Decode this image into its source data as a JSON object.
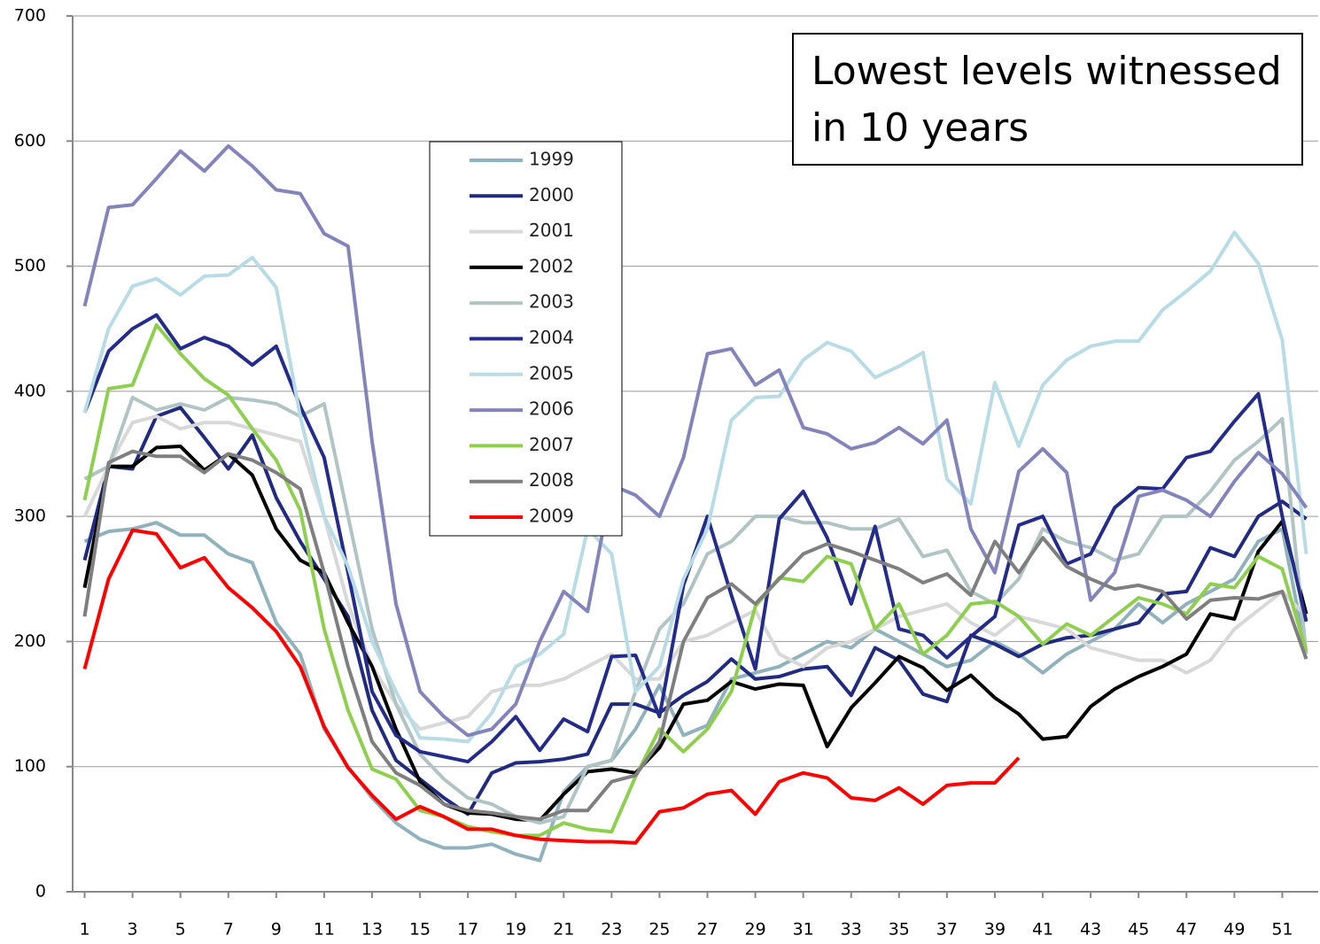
{
  "chart_data": {
    "type": "line",
    "annotation": [
      "Lowest levels witnessed",
      "in 10 years"
    ],
    "x": [
      1,
      2,
      3,
      4,
      5,
      6,
      7,
      8,
      9,
      10,
      11,
      12,
      13,
      14,
      15,
      16,
      17,
      18,
      19,
      20,
      21,
      22,
      23,
      24,
      25,
      26,
      27,
      28,
      29,
      30,
      31,
      32,
      33,
      34,
      35,
      36,
      37,
      38,
      39,
      40,
      41,
      42,
      43,
      44,
      45,
      46,
      47,
      48,
      49,
      50,
      51,
      52
    ],
    "xlim": [
      0.5,
      52.5
    ],
    "xticks": [
      1,
      3,
      5,
      7,
      9,
      11,
      13,
      15,
      17,
      19,
      21,
      23,
      25,
      27,
      29,
      31,
      33,
      35,
      37,
      39,
      41,
      43,
      45,
      47,
      49,
      51
    ],
    "ylim": [
      0,
      700
    ],
    "yticks": [
      0,
      100,
      200,
      300,
      400,
      500,
      600,
      700
    ],
    "grid": true,
    "series": [
      {
        "name": "1999",
        "color": "#8fb2bc",
        "values": [
          280,
          288,
          290,
          295,
          285,
          285,
          270,
          263,
          215,
          190,
          130,
          100,
          75,
          55,
          42,
          35,
          35,
          38,
          30,
          25,
          80,
          100,
          105,
          130,
          165,
          125,
          133,
          170,
          175,
          180,
          190,
          200,
          195,
          210,
          200,
          190,
          180,
          185,
          200,
          190,
          175,
          190,
          200,
          210,
          230,
          215,
          230,
          240,
          250,
          280,
          290,
          190
        ]
      },
      {
        "name": "2000",
        "color": "#1f2a80",
        "values": [
          265,
          340,
          338,
          380,
          387,
          363,
          338,
          365,
          315,
          280,
          250,
          220,
          145,
          105,
          90,
          75,
          62,
          95,
          103,
          104,
          106,
          110,
          150,
          150,
          143,
          157,
          168,
          186,
          170,
          172,
          178,
          180,
          157,
          195,
          185,
          158,
          152,
          205,
          198,
          188,
          198,
          203,
          205,
          210,
          215,
          238,
          240,
          275,
          268,
          300,
          312,
          298
        ]
      },
      {
        "name": "2001",
        "color": "#d8d8d8",
        "values": [
          300,
          340,
          375,
          380,
          370,
          375,
          375,
          370,
          365,
          360,
          300,
          230,
          180,
          150,
          130,
          135,
          140,
          160,
          165,
          165,
          170,
          180,
          190,
          170,
          170,
          200,
          205,
          215,
          225,
          190,
          180,
          195,
          200,
          210,
          220,
          225,
          230,
          215,
          205,
          220,
          215,
          210,
          195,
          190,
          185,
          185,
          175,
          185,
          210,
          225,
          240,
          220
        ]
      },
      {
        "name": "2002",
        "color": "#000000",
        "values": [
          243,
          340,
          340,
          355,
          356,
          337,
          350,
          333,
          290,
          265,
          255,
          215,
          180,
          130,
          88,
          70,
          63,
          62,
          58,
          57,
          78,
          96,
          98,
          95,
          115,
          150,
          153,
          168,
          162,
          166,
          165,
          116,
          147,
          167,
          188,
          179,
          161,
          173,
          155,
          142,
          122,
          124,
          148,
          162,
          172,
          180,
          190,
          222,
          218,
          272,
          296,
          222
        ]
      },
      {
        "name": "2003",
        "color": "#b0c4c4",
        "values": [
          330,
          340,
          395,
          385,
          390,
          385,
          395,
          393,
          390,
          380,
          390,
          300,
          210,
          150,
          110,
          90,
          75,
          70,
          60,
          55,
          60,
          100,
          105,
          160,
          210,
          230,
          270,
          280,
          300,
          300,
          295,
          295,
          290,
          290,
          298,
          268,
          273,
          240,
          230,
          250,
          290,
          280,
          275,
          265,
          270,
          300,
          300,
          320,
          345,
          360,
          378,
          190
        ]
      },
      {
        "name": "2004",
        "color": "#232c8c",
        "values": [
          383,
          432,
          450,
          461,
          434,
          443,
          436,
          421,
          436,
          388,
          347,
          255,
          160,
          125,
          112,
          108,
          104,
          120,
          140,
          113,
          138,
          128,
          188,
          189,
          140,
          245,
          300,
          237,
          178,
          298,
          320,
          283,
          230,
          292,
          210,
          205,
          187,
          204,
          220,
          293,
          300,
          262,
          270,
          307,
          323,
          322,
          347,
          352,
          376,
          398,
          300,
          216
        ]
      },
      {
        "name": "2005",
        "color": "#b8dce6",
        "values": [
          383,
          450,
          484,
          490,
          477,
          492,
          493,
          507,
          483,
          380,
          300,
          260,
          200,
          160,
          123,
          122,
          120,
          143,
          180,
          190,
          206,
          290,
          270,
          160,
          180,
          250,
          290,
          377,
          395,
          396,
          425,
          439,
          432,
          411,
          420,
          431,
          330,
          310,
          407,
          356,
          405,
          425,
          436,
          440,
          440,
          465,
          480,
          496,
          527,
          502,
          441,
          270
        ]
      },
      {
        "name": "2006",
        "color": "#8484bc",
        "values": [
          468,
          547,
          549,
          570,
          592,
          576,
          596,
          580,
          561,
          558,
          526,
          516,
          360,
          230,
          160,
          140,
          125,
          130,
          150,
          200,
          240,
          224,
          325,
          317,
          300,
          347,
          430,
          434,
          405,
          417,
          371,
          366,
          354,
          359,
          371,
          358,
          377,
          290,
          255,
          336,
          354,
          335,
          233,
          255,
          316,
          321,
          313,
          300,
          328,
          351,
          334,
          307
        ]
      },
      {
        "name": "2007",
        "color": "#8ed04e",
        "values": [
          313,
          402,
          405,
          453,
          430,
          410,
          397,
          370,
          345,
          305,
          210,
          145,
          98,
          90,
          65,
          60,
          52,
          48,
          45,
          45,
          55,
          50,
          48,
          92,
          130,
          112,
          130,
          160,
          228,
          251,
          248,
          268,
          262,
          210,
          230,
          190,
          205,
          230,
          232,
          220,
          198,
          214,
          205,
          220,
          235,
          230,
          222,
          246,
          243,
          268,
          258,
          192
        ]
      },
      {
        "name": "2008",
        "color": "#7f7f7f",
        "values": [
          220,
          343,
          352,
          348,
          348,
          335,
          350,
          345,
          335,
          322,
          255,
          180,
          120,
          95,
          85,
          70,
          65,
          63,
          60,
          58,
          65,
          65,
          88,
          93,
          120,
          200,
          235,
          246,
          230,
          250,
          270,
          278,
          272,
          265,
          258,
          247,
          254,
          237,
          280,
          255,
          283,
          260,
          250,
          242,
          245,
          240,
          218,
          233,
          235,
          234,
          240,
          186
        ]
      },
      {
        "name": "2009",
        "color": "#ff0000",
        "values": [
          178,
          250,
          289,
          286,
          259,
          267,
          243,
          227,
          208,
          180,
          132,
          99,
          77,
          58,
          68,
          60,
          50,
          50,
          45,
          42,
          41,
          40,
          40,
          39,
          64,
          67,
          78,
          81,
          62,
          88,
          95,
          91,
          75,
          73,
          83,
          70,
          85,
          87,
          87,
          107,
          null,
          null,
          null,
          null,
          null,
          null,
          null,
          null,
          null,
          null,
          null,
          null
        ]
      }
    ]
  }
}
